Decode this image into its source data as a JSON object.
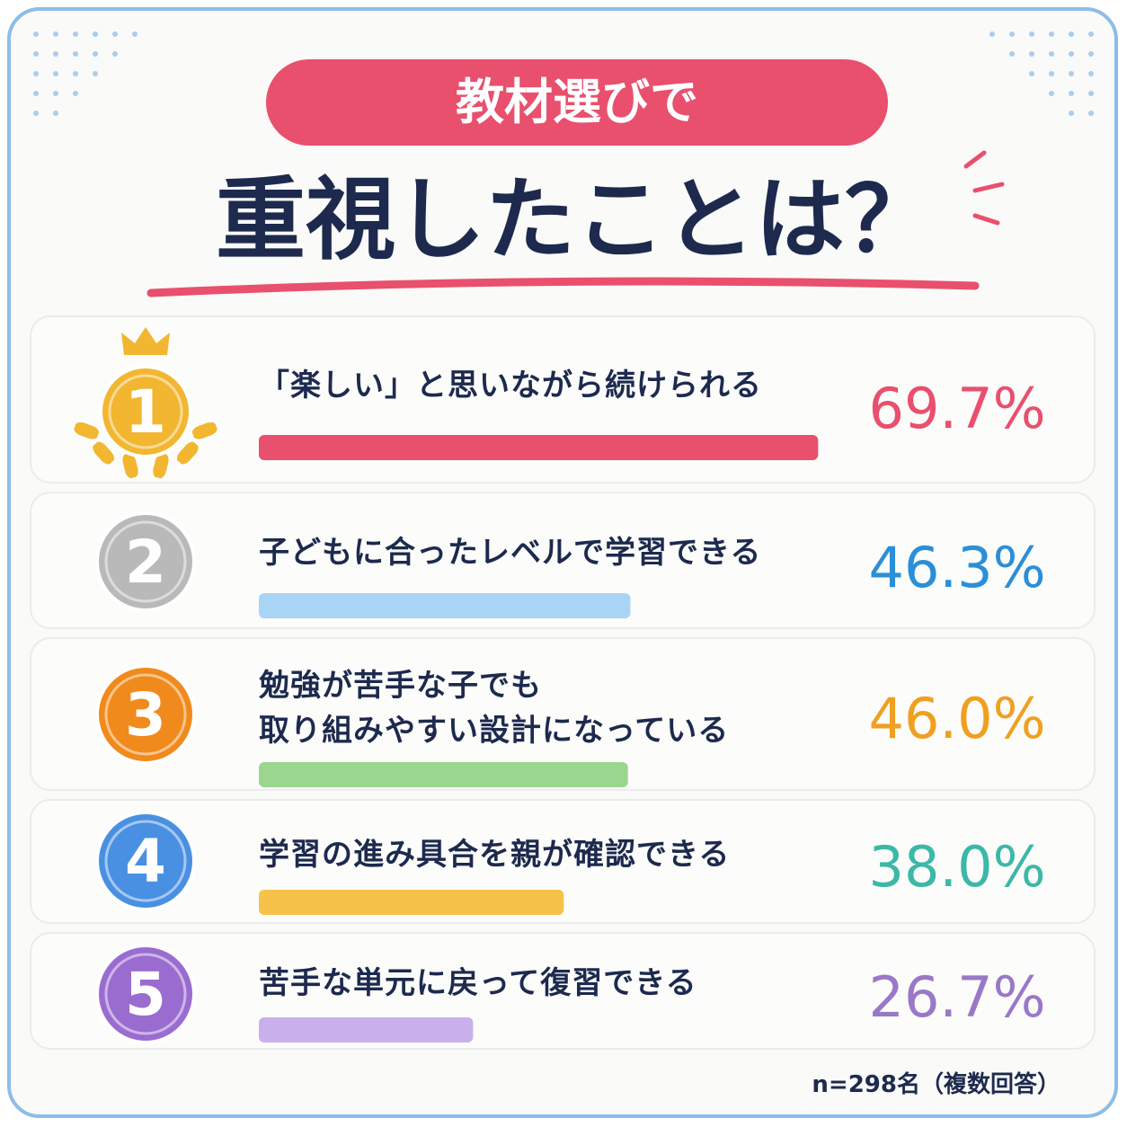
{
  "chart_data": {
    "type": "bar",
    "orientation": "horizontal",
    "title_pill": "教材選びで",
    "title": "重視したことは？",
    "ranks": [
      1,
      2,
      3,
      4,
      5
    ],
    "categories": [
      "「楽しい」と思いながら続けられる",
      "子どもに合ったレベルで学習できる",
      "勉強が苦手な子でも\n取り組みやすい設計になっている",
      "学習の進み具合を親が確認できる",
      "苦手な単元に戻って復習できる"
    ],
    "values": [
      69.7,
      46.3,
      46.0,
      38.0,
      26.7
    ],
    "value_labels": [
      "69.7%",
      "46.3%",
      "46.0%",
      "38.0%",
      "26.7%"
    ],
    "colors": [
      "#e8506e",
      "#a8d4f5",
      "#9ad68e",
      "#f6c24a",
      "#c9b0ea"
    ],
    "value_colors": [
      "#e8506e",
      "#2b8fd8",
      "#f0a020",
      "#3bb8a8",
      "#9a78c8"
    ],
    "medal_colors": [
      "#f2b630",
      "#b9b9b9",
      "#f08a1c",
      "#4a90e2",
      "#9a6cd0"
    ],
    "xlim": [
      0,
      70
    ],
    "note": "n=298名（複数回答）"
  }
}
